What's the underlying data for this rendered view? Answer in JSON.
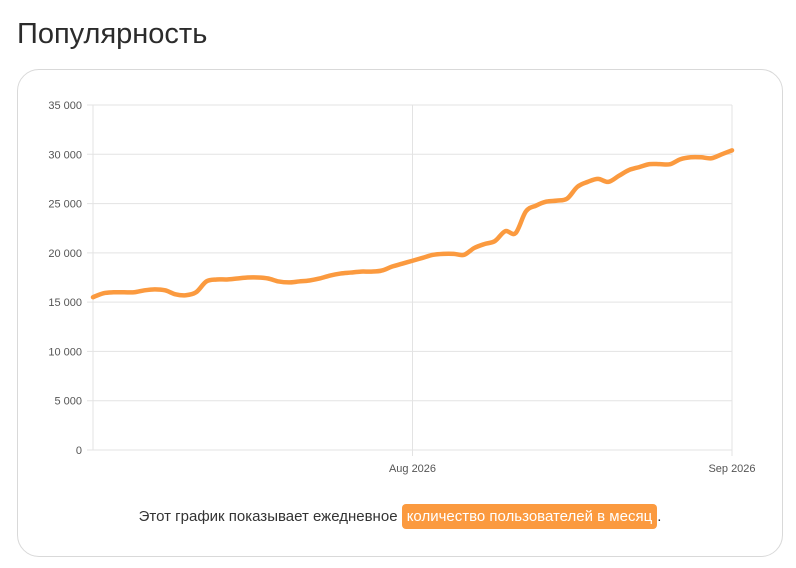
{
  "page": {
    "title": "Популярность",
    "caption_prefix": "Этот график показывает ежедневное ",
    "caption_highlight": "количество пользователей в месяц",
    "caption_suffix": "."
  },
  "colors": {
    "line": "#fb9a3f",
    "highlight_bg": "#fb9a3f",
    "grid": "#e3e3e3",
    "tick_text": "#555555"
  },
  "chart_data": {
    "type": "line",
    "title": "",
    "xlabel": "",
    "ylabel": "",
    "ylim": [
      0,
      35000
    ],
    "xlim": [
      "2026-07-01",
      "2026-09-01"
    ],
    "grid": true,
    "legend": "none",
    "y_ticks": [
      {
        "value": 0,
        "label": "0"
      },
      {
        "value": 5000,
        "label": "5 000"
      },
      {
        "value": 10000,
        "label": "10 000"
      },
      {
        "value": 15000,
        "label": "15 000"
      },
      {
        "value": 20000,
        "label": "20 000"
      },
      {
        "value": 25000,
        "label": "25 000"
      },
      {
        "value": 30000,
        "label": "30 000"
      },
      {
        "value": 35000,
        "label": "35 000"
      }
    ],
    "x_ticks": [
      {
        "value": "2026-08-01",
        "label": "Aug 2026"
      },
      {
        "value": "2026-09-01",
        "label": "Sep 2026"
      }
    ],
    "series": [
      {
        "x": [
          "2026-07-01",
          "2026-07-02",
          "2026-07-03",
          "2026-07-04",
          "2026-07-05",
          "2026-07-06",
          "2026-07-07",
          "2026-07-08",
          "2026-07-09",
          "2026-07-10",
          "2026-07-11",
          "2026-07-12",
          "2026-07-13",
          "2026-07-14",
          "2026-07-15",
          "2026-07-16",
          "2026-07-17",
          "2026-07-18",
          "2026-07-19",
          "2026-07-20",
          "2026-07-21",
          "2026-07-22",
          "2026-07-23",
          "2026-07-24",
          "2026-07-25",
          "2026-07-26",
          "2026-07-27",
          "2026-07-28",
          "2026-07-29",
          "2026-07-30",
          "2026-07-31",
          "2026-08-01",
          "2026-08-02",
          "2026-08-03",
          "2026-08-04",
          "2026-08-05",
          "2026-08-06",
          "2026-08-07",
          "2026-08-08",
          "2026-08-09",
          "2026-08-10",
          "2026-08-11",
          "2026-08-12",
          "2026-08-13",
          "2026-08-14",
          "2026-08-15",
          "2026-08-16",
          "2026-08-17",
          "2026-08-18",
          "2026-08-19",
          "2026-08-20",
          "2026-08-21",
          "2026-08-22",
          "2026-08-23",
          "2026-08-24",
          "2026-08-25",
          "2026-08-26",
          "2026-08-27",
          "2026-08-28",
          "2026-08-29",
          "2026-08-30",
          "2026-08-31",
          "2026-09-01"
        ],
        "y": [
          15500,
          15900,
          16000,
          16000,
          16000,
          16200,
          16300,
          16200,
          15800,
          15700,
          16000,
          17100,
          17300,
          17300,
          17400,
          17500,
          17500,
          17400,
          17100,
          17000,
          17100,
          17200,
          17400,
          17700,
          17900,
          18000,
          18100,
          18100,
          18200,
          18600,
          18900,
          19200,
          19500,
          19800,
          19900,
          19900,
          19800,
          20500,
          20900,
          21200,
          22200,
          22000,
          24200,
          24800,
          25200,
          25300,
          25500,
          26700,
          27200,
          27500,
          27200,
          27800,
          28400,
          28700,
          29000,
          29000,
          29000,
          29500,
          29700,
          29700,
          29600,
          30000,
          30400
        ]
      }
    ]
  }
}
